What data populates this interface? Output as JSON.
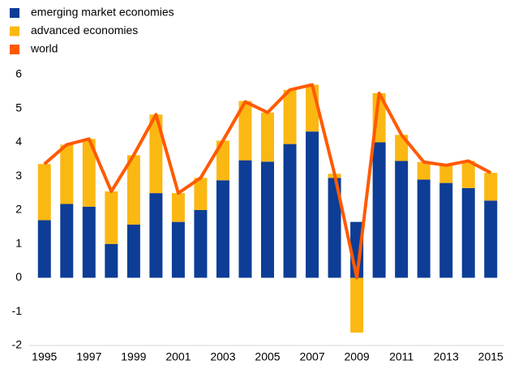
{
  "chart_data": {
    "type": "stacked-bar-line",
    "categories": [
      "1995",
      null,
      "1997",
      null,
      "1999",
      null,
      "2001",
      null,
      "2003",
      null,
      "2005",
      null,
      "2007",
      null,
      "2009",
      null,
      "2011",
      null,
      "2013",
      null,
      "2015"
    ],
    "series": [
      {
        "name": "emerging market economies",
        "color": "#0d3d96",
        "kind": "bar",
        "values": [
          1.7,
          2.18,
          2.1,
          1.0,
          1.57,
          2.5,
          1.65,
          2.0,
          2.88,
          3.47,
          3.43,
          3.95,
          4.32,
          2.95,
          1.65,
          4.0,
          3.45,
          2.9,
          2.8,
          2.65,
          2.28
        ]
      },
      {
        "name": "advanced economies",
        "color": "#fbb813",
        "kind": "bar",
        "values": [
          1.66,
          1.75,
          2.0,
          1.55,
          2.05,
          2.32,
          0.85,
          0.95,
          1.17,
          1.75,
          1.45,
          1.6,
          1.38,
          0.12,
          -1.62,
          1.45,
          0.77,
          0.52,
          0.52,
          0.8,
          0.82
        ]
      },
      {
        "name": "world",
        "color": "#ff5a00",
        "kind": "line",
        "values": [
          3.36,
          3.93,
          4.1,
          2.55,
          3.62,
          4.82,
          2.5,
          2.95,
          4.05,
          5.2,
          4.88,
          5.55,
          5.7,
          3.07,
          0.0,
          5.45,
          4.22,
          3.42,
          3.32,
          3.45,
          3.1
        ]
      }
    ],
    "ylim": [
      -2,
      6
    ],
    "yticks": [
      -2,
      -1,
      0,
      1,
      2,
      3,
      4,
      5,
      6
    ],
    "legend": "top-left"
  }
}
